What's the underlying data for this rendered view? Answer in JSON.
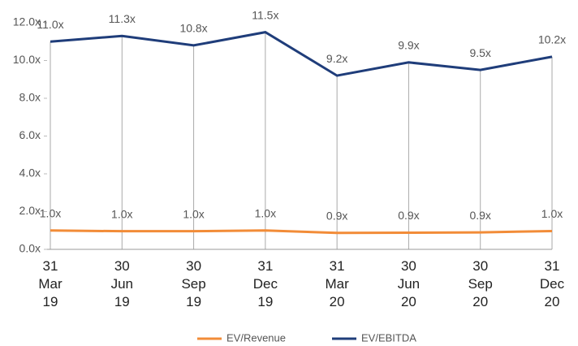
{
  "chart_data": {
    "type": "line",
    "categories": [
      "31 Mar 19",
      "30 Jun 19",
      "30 Sep 19",
      "31 Dec 19",
      "31 Mar 20",
      "30 Jun 20",
      "30 Sep 20",
      "31 Dec 20"
    ],
    "series": [
      {
        "name": "EV/Revenue",
        "color": "#f28c38",
        "values": [
          1.0,
          0.96,
          0.96,
          1.0,
          0.87,
          0.88,
          0.9,
          0.97
        ],
        "value_labels": [
          "1.0x",
          "1.0x",
          "1.0x",
          "1.0x",
          "0.9x",
          "0.9x",
          "0.9x",
          "1.0x"
        ]
      },
      {
        "name": "EV/EBITDA",
        "color": "#1f3d7a",
        "values": [
          11.0,
          11.3,
          10.8,
          11.5,
          9.2,
          9.9,
          9.5,
          10.2
        ],
        "value_labels": [
          "11.0x",
          "11.3x",
          "10.8x",
          "11.5x",
          "9.2x",
          "9.9x",
          "9.5x",
          "10.2x"
        ]
      }
    ],
    "ylim": [
      0,
      12
    ],
    "yticks": [
      {
        "value": 0,
        "label": "0.0x"
      },
      {
        "value": 2,
        "label": "2.0x"
      },
      {
        "value": 4,
        "label": "4.0x"
      },
      {
        "value": 6,
        "label": "6.0x"
      },
      {
        "value": 8,
        "label": "8.0x"
      },
      {
        "value": 10,
        "label": "10.0x"
      },
      {
        "value": 12,
        "label": "12.0x"
      }
    ],
    "legend": "bottom"
  }
}
